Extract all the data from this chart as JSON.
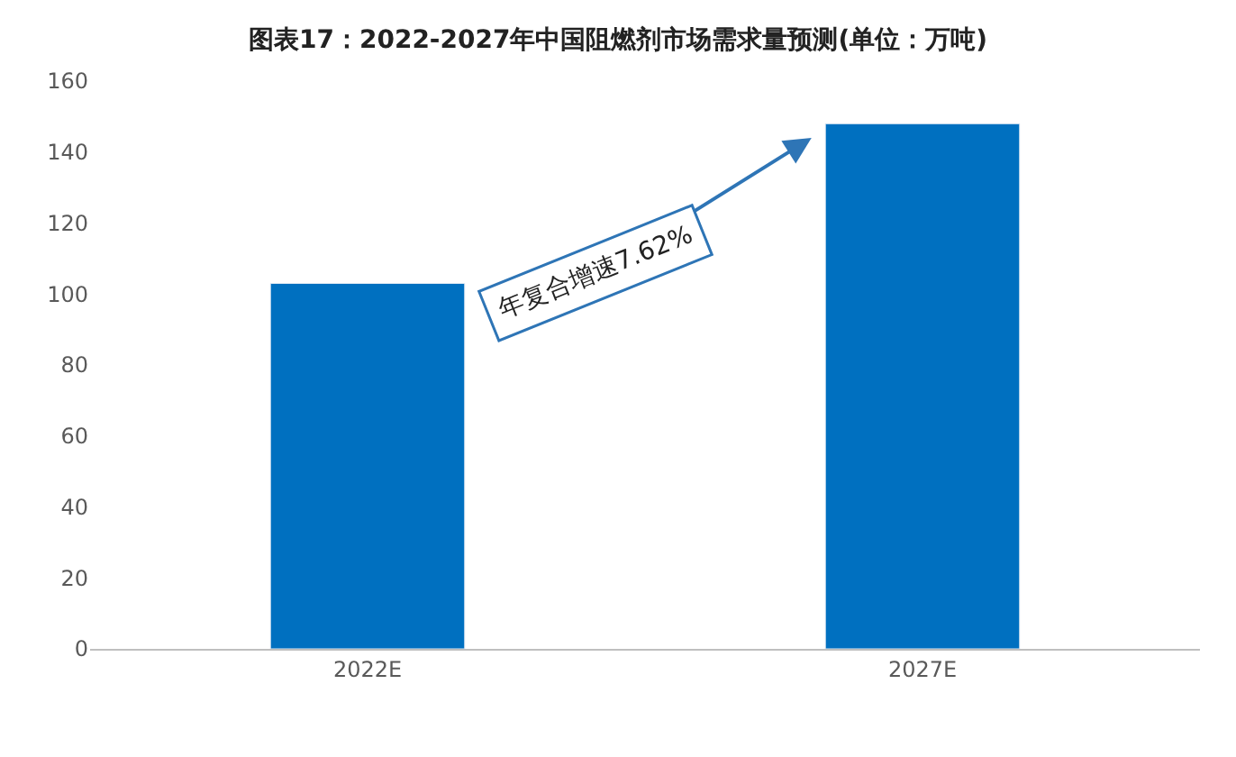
{
  "chart_data": {
    "type": "bar",
    "title": "图表17：2022-2027年中国阻燃剂市场需求量预测(单位：万吨)",
    "categories": [
      "2022E",
      "2027E"
    ],
    "series": [
      {
        "color": "#0070c0",
        "values": [
          103,
          148
        ]
      }
    ],
    "ylim": [
      0,
      160
    ],
    "yticks": [
      0,
      20,
      40,
      60,
      80,
      100,
      120,
      140,
      160
    ],
    "annotations": [
      "年复合增速7.62%"
    ]
  }
}
